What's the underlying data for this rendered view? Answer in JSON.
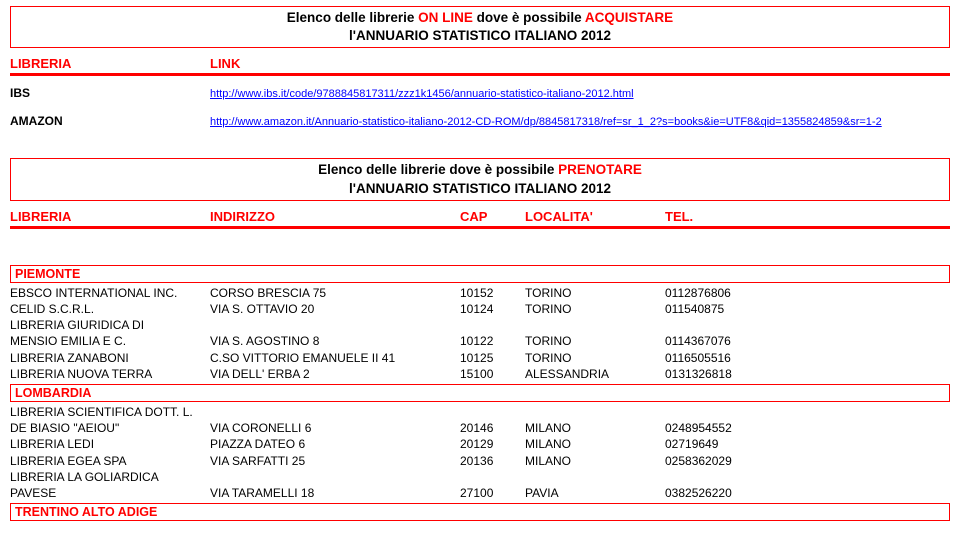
{
  "title1": {
    "line1_pre": "Elenco delle librerie ",
    "line1_highlight": "ON LINE",
    "line1_mid": " dove è possibile ",
    "line1_end": "ACQUISTARE",
    "line2": "l'ANNUARIO STATISTICO ITALIANO 2012"
  },
  "headers1": {
    "libreria": "LIBRERIA",
    "link": "LINK"
  },
  "links": [
    {
      "name": "IBS",
      "url": "http://www.ibs.it/code/9788845817311/zzz1k1456/annuario-statistico-italiano-2012.html"
    },
    {
      "name": "AMAZON",
      "url": "http://www.amazon.it/Annuario-statistico-italiano-2012-CD-ROM/dp/8845817318/ref=sr_1_2?s=books&ie=UTF8&qid=1355824859&sr=1-2"
    }
  ],
  "title2": {
    "line1_pre": "Elenco delle librerie dove è possibile ",
    "line1_end": "PRENOTARE",
    "line2": "l'ANNUARIO STATISTICO ITALIANO 2012"
  },
  "headers2": {
    "libreria": "LIBRERIA",
    "indirizzo": "INDIRIZZO",
    "cap": "CAP",
    "localita": "LOCALITA'",
    "tel": "TEL."
  },
  "region1": "PIEMONTE",
  "rows1": [
    {
      "libreria": "EBSCO INTERNATIONAL INC.",
      "indirizzo": "CORSO BRESCIA 75",
      "cap": "10152",
      "localita": "TORINO",
      "tel": "0112876806"
    },
    {
      "libreria": "CELID S.C.R.L.",
      "indirizzo": "VIA S. OTTAVIO 20",
      "cap": "10124",
      "localita": "TORINO",
      "tel": "011540875"
    },
    {
      "libreria": "LIBRERIA GIURIDICA DI",
      "indirizzo": "",
      "cap": "",
      "localita": "",
      "tel": ""
    },
    {
      "libreria": "MENSIO EMILIA E C.",
      "indirizzo": "VIA S. AGOSTINO 8",
      "cap": "10122",
      "localita": "TORINO",
      "tel": "0114367076"
    },
    {
      "libreria": "LIBRERIA ZANABONI",
      "indirizzo": "C.SO VITTORIO EMANUELE II 41",
      "cap": "10125",
      "localita": "TORINO",
      "tel": "0116505516"
    },
    {
      "libreria": "LIBRERIA NUOVA TERRA",
      "indirizzo": "VIA DELL' ERBA 2",
      "cap": "15100",
      "localita": "ALESSANDRIA",
      "tel": "0131326818"
    }
  ],
  "region2": "LOMBARDIA",
  "rows2": [
    {
      "libreria": "LIBRERIA SCIENTIFICA DOTT. L.",
      "indirizzo": "",
      "cap": "",
      "localita": "",
      "tel": ""
    },
    {
      "libreria": "DE BIASIO \"AEIOU\"",
      "indirizzo": "VIA CORONELLI 6",
      "cap": "20146",
      "localita": "MILANO",
      "tel": "0248954552"
    },
    {
      "libreria": "LIBRERIA LEDI",
      "indirizzo": "PIAZZA DATEO 6",
      "cap": "20129",
      "localita": "MILANO",
      "tel": "02719649"
    },
    {
      "libreria": "LIBRERIA EGEA SPA",
      "indirizzo": "VIA SARFATTI 25",
      "cap": "20136",
      "localita": "MILANO",
      "tel": "0258362029"
    },
    {
      "libreria": "LIBRERIA LA GOLIARDICA",
      "indirizzo": "",
      "cap": "",
      "localita": "",
      "tel": ""
    },
    {
      "libreria": "PAVESE",
      "indirizzo": "VIA TARAMELLI 18",
      "cap": "27100",
      "localita": "PAVIA",
      "tel": "0382526220"
    }
  ],
  "region3": "TRENTINO ALTO ADIGE"
}
